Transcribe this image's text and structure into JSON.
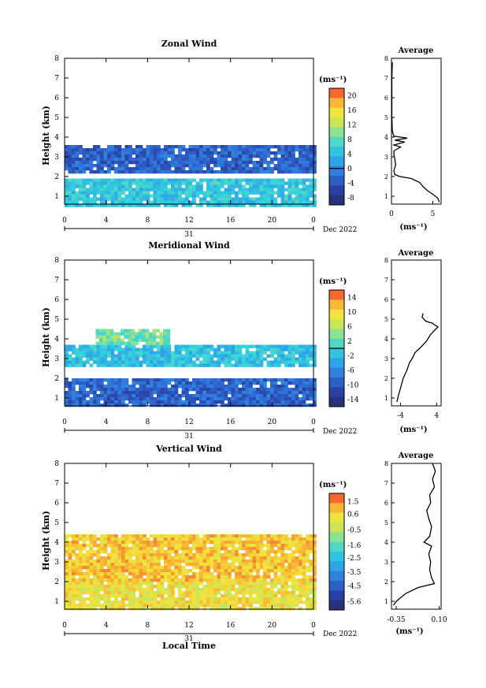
{
  "chart_data": [
    {
      "type": "heatmap",
      "title": "Zonal Wind",
      "xlabel": "",
      "ylabel": "Height (km)",
      "date_label": "31",
      "month_label": "Dec 2022",
      "xticks": [
        "0",
        "4",
        "8",
        "12",
        "16",
        "20",
        "0"
      ],
      "xlim": [
        0,
        24
      ],
      "yticks": [
        "1",
        "2",
        "3",
        "4",
        "5",
        "6",
        "7",
        "8"
      ],
      "ylim": [
        0.6,
        8
      ],
      "colorbar": {
        "unit": "(ms⁻¹)",
        "ticks": [
          "20",
          "16",
          "12",
          "8",
          "4",
          "0",
          "-4",
          "-8"
        ],
        "range": [
          -10,
          22
        ],
        "zero_line": 0
      },
      "layers": [
        {
          "y": [
            0.6,
            1.9
          ],
          "x": [
            0,
            24
          ],
          "value": 5
        },
        {
          "y": [
            2.3,
            3.6
          ],
          "x": [
            0,
            24
          ],
          "value": -3
        }
      ],
      "profile": {
        "title": "Average",
        "xticks": [
          "0",
          "5"
        ],
        "xlim": [
          0,
          6
        ],
        "xlabel": "(ms⁻¹)",
        "points": [
          [
            5.8,
            0.7
          ],
          [
            5.6,
            0.9
          ],
          [
            5.0,
            1.1
          ],
          [
            4.3,
            1.3
          ],
          [
            3.8,
            1.5
          ],
          [
            3.4,
            1.7
          ],
          [
            2.4,
            1.9
          ],
          [
            1.0,
            2.0
          ],
          [
            0.4,
            2.1
          ],
          [
            0.3,
            2.3
          ],
          [
            0.5,
            2.6
          ],
          [
            0.4,
            2.9
          ],
          [
            0.3,
            3.1
          ],
          [
            0.3,
            3.3
          ],
          [
            1.1,
            3.5
          ],
          [
            0.3,
            3.6
          ],
          [
            1.6,
            3.75
          ],
          [
            0.4,
            3.85
          ],
          [
            1.9,
            3.95
          ],
          [
            0.3,
            4.05
          ],
          [
            0.1,
            4.3
          ],
          [
            0.05,
            5.0
          ],
          [
            0.05,
            6.0
          ],
          [
            0.05,
            7.0
          ],
          [
            0.1,
            7.8
          ]
        ]
      }
    },
    {
      "type": "heatmap",
      "title": "Meridional Wind",
      "xlabel": "",
      "ylabel": "Height (km)",
      "date_label": "31",
      "month_label": "Dec 2022",
      "xticks": [
        "0",
        "4",
        "8",
        "12",
        "16",
        "20",
        "0"
      ],
      "xlim": [
        0,
        24
      ],
      "yticks": [
        "1",
        "2",
        "3",
        "4",
        "5",
        "6",
        "7",
        "8"
      ],
      "ylim": [
        0.6,
        8
      ],
      "colorbar": {
        "unit": "(ms⁻¹)",
        "ticks": [
          "14",
          "10",
          "6",
          "2",
          "-2",
          "-6",
          "-10",
          "-14"
        ],
        "range": [
          -16,
          16
        ],
        "zero_line": 0
      },
      "layers": [
        {
          "y": [
            0.6,
            2.0
          ],
          "x": [
            0,
            24
          ],
          "value": -9
        },
        {
          "y": [
            2.6,
            3.7
          ],
          "x": [
            0,
            24
          ],
          "value": -1.5
        },
        {
          "y": [
            3.7,
            4.5
          ],
          "x": [
            3,
            10
          ],
          "value": 3
        }
      ],
      "profile": {
        "title": "Average",
        "xticks": [
          "-4",
          "4"
        ],
        "xlim": [
          -6,
          5
        ],
        "xlabel": "(ms⁻¹)",
        "points": [
          [
            -4.8,
            0.8
          ],
          [
            -4.5,
            1.1
          ],
          [
            -4.0,
            1.5
          ],
          [
            -3.4,
            2.0
          ],
          [
            -2.6,
            2.4
          ],
          [
            -2.0,
            2.8
          ],
          [
            -1.4,
            3.0
          ],
          [
            -0.8,
            3.3
          ],
          [
            0.6,
            3.6
          ],
          [
            1.8,
            3.9
          ],
          [
            2.6,
            4.2
          ],
          [
            3.4,
            4.4
          ],
          [
            4.3,
            4.6
          ],
          [
            3.0,
            4.8
          ],
          [
            1.6,
            4.9
          ],
          [
            0.8,
            5.1
          ],
          [
            1.0,
            5.3
          ]
        ]
      }
    },
    {
      "type": "heatmap",
      "title": "Vertical Wind",
      "xlabel": "Local Time",
      "ylabel": "Height (km)",
      "date_label": "31",
      "month_label": "Dec 2022",
      "xticks": [
        "0",
        "4",
        "8",
        "12",
        "16",
        "20",
        "0"
      ],
      "xlim": [
        0,
        24
      ],
      "yticks": [
        "1",
        "2",
        "3",
        "4",
        "5",
        "6",
        "7",
        "8"
      ],
      "ylim": [
        0.6,
        8
      ],
      "colorbar": {
        "unit": "(ms⁻¹)",
        "ticks": [
          "1.5",
          "0.6",
          "-0.5",
          "-1.6",
          "-2.5",
          "-3.5",
          "-4.5",
          "-5.6"
        ],
        "range": [
          -6.2,
          2.1
        ],
        "zero_line": null
      },
      "layers": [
        {
          "y": [
            0.6,
            2.0
          ],
          "x": [
            0,
            24
          ],
          "value": 0.3
        },
        {
          "y": [
            2.0,
            4.4
          ],
          "x": [
            0,
            24
          ],
          "value": 0.8
        }
      ],
      "profile": {
        "title": "Average",
        "xticks": [
          "-0.35",
          "0.10"
        ],
        "xlim": [
          -0.4,
          0.12
        ],
        "xlabel": "(ms⁻¹)",
        "points": [
          [
            -0.38,
            0.8
          ],
          [
            -0.35,
            1.0
          ],
          [
            -0.25,
            1.4
          ],
          [
            -0.12,
            1.7
          ],
          [
            0.05,
            1.9
          ],
          [
            0.02,
            2.2
          ],
          [
            0.0,
            2.6
          ],
          [
            0.01,
            3.0
          ],
          [
            -0.01,
            3.4
          ],
          [
            0.02,
            3.8
          ],
          [
            -0.06,
            4.0
          ],
          [
            0.0,
            4.3
          ],
          [
            0.02,
            4.8
          ],
          [
            -0.01,
            5.2
          ],
          [
            -0.03,
            5.6
          ],
          [
            0.01,
            6.0
          ],
          [
            0.0,
            6.4
          ],
          [
            0.05,
            6.8
          ],
          [
            0.03,
            7.2
          ],
          [
            0.06,
            7.6
          ],
          [
            0.03,
            8.0
          ]
        ]
      }
    }
  ]
}
